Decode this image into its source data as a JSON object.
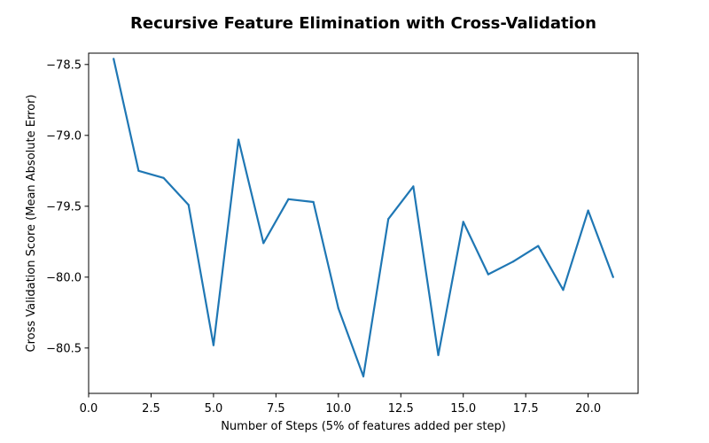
{
  "chart_data": {
    "type": "line",
    "title": "Recursive Feature Elimination with Cross-Validation",
    "xlabel": "Number of Steps (5% of features added per step)",
    "ylabel": "Cross Validation Score (Mean Absolute Error)",
    "xlim": [
      0,
      22
    ],
    "ylim": [
      -80.82,
      -78.42
    ],
    "x_ticks": [
      0.0,
      2.5,
      5.0,
      7.5,
      10.0,
      12.5,
      15.0,
      17.5,
      20.0
    ],
    "x_tick_labels": [
      "0.0",
      "2.5",
      "5.0",
      "7.5",
      "10.0",
      "12.5",
      "15.0",
      "17.5",
      "20.0"
    ],
    "y_ticks": [
      -78.5,
      -79.0,
      -79.5,
      -80.0,
      -80.5
    ],
    "y_tick_labels": [
      "−78.5",
      "−79.0",
      "−79.5",
      "−80.0",
      "−80.5"
    ],
    "grid": false,
    "line_color": "#1f77b4",
    "x": [
      1,
      2,
      3,
      4,
      5,
      6,
      7,
      8,
      9,
      10,
      11,
      12,
      13,
      14,
      15,
      16,
      17,
      18,
      19,
      20,
      21
    ],
    "values": [
      -78.46,
      -79.25,
      -79.3,
      -79.49,
      -80.48,
      -79.03,
      -79.76,
      -79.45,
      -79.47,
      -80.22,
      -80.7,
      -79.59,
      -79.36,
      -80.55,
      -79.61,
      -79.98,
      -79.89,
      -79.78,
      -80.09,
      -79.53,
      -80.0
    ]
  }
}
